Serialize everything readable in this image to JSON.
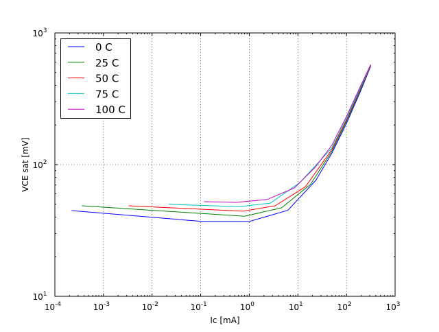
{
  "chart_data": {
    "type": "line",
    "title": "",
    "xlabel": "Ic [mA]",
    "ylabel": "VCE sat [mV]",
    "xscale": "log",
    "yscale": "log",
    "xlim": [
      0.0001,
      1000
    ],
    "ylim": [
      10,
      1000
    ],
    "grid": true,
    "legend_position": "top-left",
    "x_ticks": [
      {
        "value": 0.0001,
        "base": "10",
        "exp": "-4"
      },
      {
        "value": 0.001,
        "base": "10",
        "exp": "-3"
      },
      {
        "value": 0.01,
        "base": "10",
        "exp": "-2"
      },
      {
        "value": 0.1,
        "base": "10",
        "exp": "-1"
      },
      {
        "value": 1,
        "base": "10",
        "exp": "0"
      },
      {
        "value": 10,
        "base": "10",
        "exp": "1"
      },
      {
        "value": 100,
        "base": "10",
        "exp": "2"
      },
      {
        "value": 1000,
        "base": "10",
        "exp": "3"
      }
    ],
    "y_ticks": [
      {
        "value": 10,
        "base": "10",
        "exp": "1"
      },
      {
        "value": 100,
        "base": "10",
        "exp": "2"
      },
      {
        "value": 1000,
        "base": "10",
        "exp": "3"
      }
    ],
    "series": [
      {
        "name": "0 C",
        "color": "#0000ff",
        "x": [
          0.00022,
          0.11,
          1.0,
          6.2,
          23.4,
          50,
          100,
          200,
          315
        ],
        "y": [
          44.8,
          37,
          37,
          45,
          76,
          122,
          205,
          370,
          560
        ]
      },
      {
        "name": "25 C",
        "color": "#008000",
        "x": [
          0.00036,
          0.8,
          4.6,
          18,
          50,
          100,
          200,
          315
        ],
        "y": [
          48.7,
          40.6,
          47,
          70.6,
          126,
          212,
          380,
          565
        ]
      },
      {
        "name": "50 C",
        "color": "#ff0000",
        "x": [
          0.0033,
          0.75,
          3.4,
          14.3,
          50,
          100,
          200,
          315
        ],
        "y": [
          48.7,
          44.3,
          48.7,
          68,
          130,
          218,
          388,
          568
        ]
      },
      {
        "name": "75 C",
        "color": "#00bfbf",
        "x": [
          0.022,
          0.63,
          2.7,
          11,
          50,
          100,
          200,
          315
        ],
        "y": [
          50,
          48,
          51,
          73,
          134,
          224,
          395,
          572
        ]
      },
      {
        "name": "100 C",
        "color": "#bf00bf",
        "x": [
          0.117,
          0.54,
          2.3,
          8.5,
          23,
          50,
          100,
          200,
          315
        ],
        "y": [
          52.3,
          51.7,
          54.3,
          66.5,
          96,
          140,
          232,
          405,
          575
        ]
      }
    ]
  }
}
